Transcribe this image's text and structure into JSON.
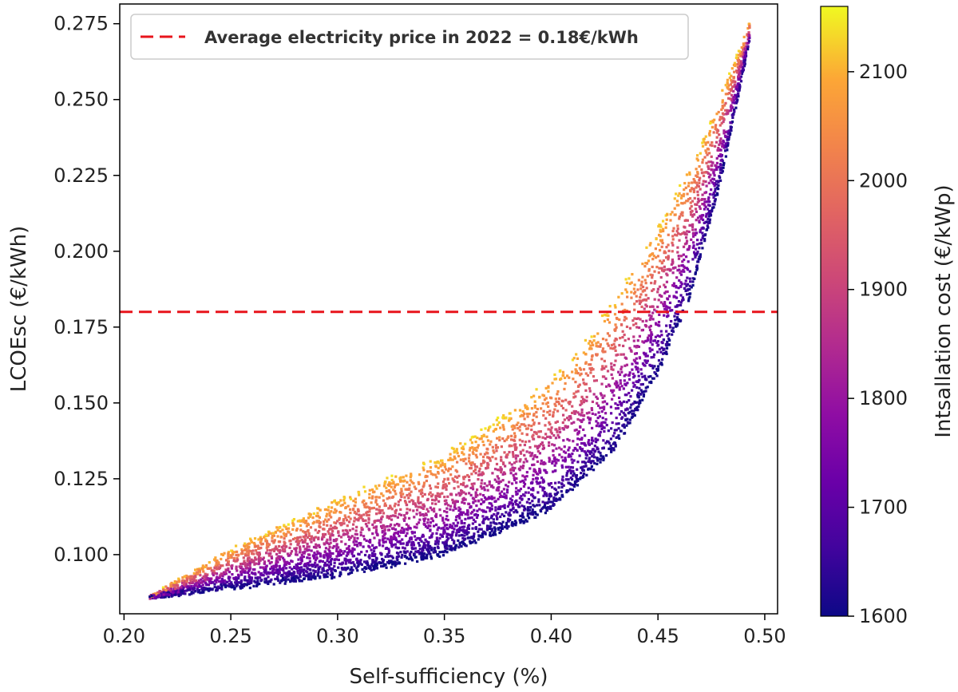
{
  "chart_data": {
    "type": "scatter",
    "xlabel": "Self-sufficiency (%)",
    "ylabel": "LCOEsc (€/kWh)",
    "xlim": [
      0.198,
      0.506
    ],
    "ylim": [
      0.0805,
      0.2815
    ],
    "x_ticks": [
      0.2,
      0.25,
      0.3,
      0.35,
      0.4,
      0.45,
      0.5
    ],
    "x_tick_labels": [
      "0.20",
      "0.25",
      "0.30",
      "0.35",
      "0.40",
      "0.45",
      "0.50"
    ],
    "y_ticks": [
      0.1,
      0.125,
      0.15,
      0.175,
      0.2,
      0.225,
      0.25,
      0.275
    ],
    "y_tick_labels": [
      "0.100",
      "0.125",
      "0.150",
      "0.175",
      "0.200",
      "0.225",
      "0.250",
      "0.275"
    ],
    "reference_line": {
      "y": 0.18,
      "color": "#e8141c",
      "style": "dashed",
      "label": "Average electricity price in 2022 = 0.18€/kWh"
    },
    "legend": {
      "location": "upper left"
    },
    "colorbar": {
      "label": "Intsallation cost (€/kWp)",
      "min": 1600,
      "max": 2160,
      "ticks": [
        1600,
        1700,
        1800,
        1900,
        2000,
        2100
      ],
      "tick_labels": [
        "1600",
        "1700",
        "1800",
        "1900",
        "2000",
        "2100"
      ],
      "colormap": "plasma"
    },
    "series": [
      {
        "name": "Scatter of simulated configurations (colored by installation cost)",
        "description_points_approx": {
          "x_range": [
            0.212,
            0.493
          ],
          "lower_edge": [
            [
              0.212,
              0.086
            ],
            [
              0.25,
              0.089
            ],
            [
              0.3,
              0.093
            ],
            [
              0.35,
              0.1
            ],
            [
              0.4,
              0.115
            ],
            [
              0.43,
              0.135
            ],
            [
              0.45,
              0.16
            ],
            [
              0.465,
              0.185
            ],
            [
              0.48,
              0.225
            ],
            [
              0.493,
              0.27
            ]
          ],
          "upper_edge": [
            [
              0.212,
              0.086
            ],
            [
              0.25,
              0.102
            ],
            [
              0.3,
              0.118
            ],
            [
              0.35,
              0.133
            ],
            [
              0.38,
              0.147
            ],
            [
              0.41,
              0.165
            ],
            [
              0.43,
              0.185
            ],
            [
              0.45,
              0.208
            ],
            [
              0.47,
              0.235
            ],
            [
              0.493,
              0.275
            ]
          ]
        }
      }
    ]
  }
}
